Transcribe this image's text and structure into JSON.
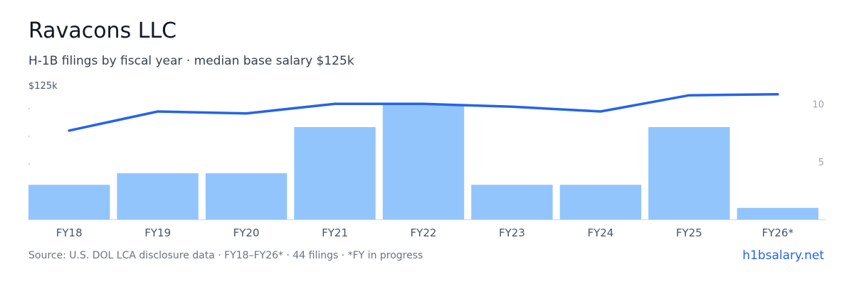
{
  "header": {
    "title": "Ravacons LLC",
    "subtitle": "H-1B filings by fiscal year · median base salary $125k"
  },
  "footer": {
    "source": "Source: U.S. DOL LCA disclosure data · FY18–FY26* · 44 filings · *FY in progress",
    "link": "h1bsalary.net"
  },
  "colors": {
    "bar": "#93c5fd",
    "line": "#2563eb",
    "axis_text": "#4b5563",
    "right_tick_text": "#9ca3af",
    "baseline": "#d1d5db",
    "link": "#2563eb"
  },
  "chart_data": {
    "type": "bar",
    "categories": [
      "FY18",
      "FY19",
      "FY20",
      "FY21",
      "FY22",
      "FY23",
      "FY24",
      "FY25",
      "FY26*"
    ],
    "series": [
      {
        "type": "bar",
        "axis": "right",
        "values": [
          3,
          4,
          4,
          8,
          10,
          3,
          3,
          8,
          1
        ]
      },
      {
        "type": "line",
        "axis": "left",
        "values": [
          93,
          113,
          111,
          121,
          121,
          118,
          113,
          130,
          131
        ]
      }
    ],
    "left_axis": {
      "label": "$125k",
      "ylim": [
        0,
        145
      ]
    },
    "right_axis": {
      "ticks": [
        5,
        10
      ],
      "ylim": [
        0,
        12
      ]
    },
    "grid": false,
    "legend": "none"
  }
}
